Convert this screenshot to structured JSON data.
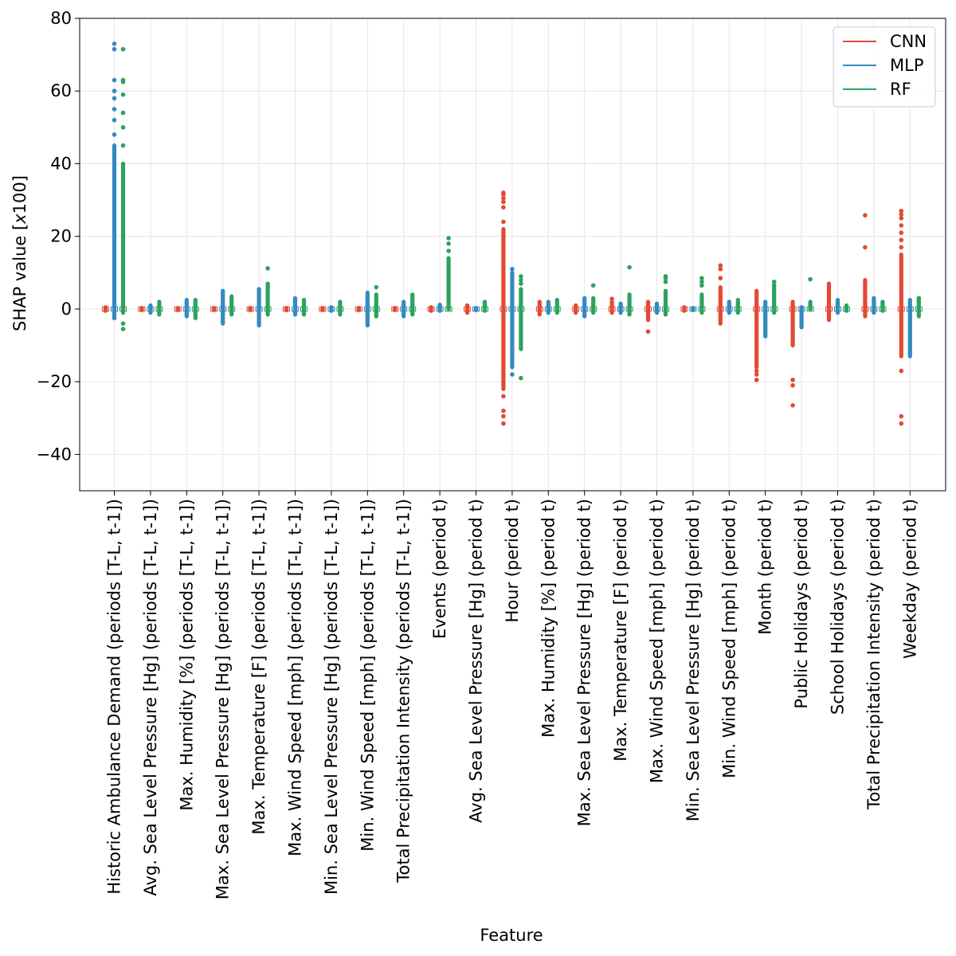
{
  "chart_data": {
    "type": "scatter",
    "title": "",
    "xlabel": "Feature",
    "ylabel": "SHAP value [x100]",
    "ylabel_parts": {
      "main": "SHAP value [",
      "italic": "x",
      "tail": "100]"
    },
    "ylim": [
      -50,
      80
    ],
    "yticks": [
      -40,
      -20,
      0,
      20,
      40,
      60,
      80
    ],
    "ytick_labels": [
      "−40",
      "−20",
      "0",
      "20",
      "40",
      "60",
      "80"
    ],
    "grid": true,
    "legend_position": "top-right",
    "categories": [
      "Historic Ambulance Demand (periods [T-L, t-1])",
      "Avg. Sea Level Pressure [Hg] (periods [T-L, t-1])",
      "Max. Humidity [%] (periods [T-L, t-1])",
      "Max. Sea Level Pressure [Hg] (periods [T-L, t-1])",
      "Max. Temperature [F] (periods [T-L, t-1])",
      "Max. Wind Speed [mph] (periods [T-L, t-1])",
      "Min. Sea Level Pressure [Hg] (periods [T-L, t-1])",
      "Min. Wind Speed [mph] (periods [T-L, t-1])",
      "Total Precipitation Intensity (periods [T-L, t-1])",
      "Events (period t)",
      "Avg. Sea Level Pressure [Hg] (period t)",
      "Hour (period t)",
      "Max. Humidity [%] (period t)",
      "Max. Sea Level Pressure [Hg] (period t)",
      "Max. Temperature [F] (period t)",
      "Max. Wind Speed [mph] (period t)",
      "Min. Sea Level Pressure [Hg] (period t)",
      "Min. Wind Speed [mph] (period t)",
      "Month (period t)",
      "Public Holidays (period t)",
      "School Holidays (period t)",
      "Total Precipitation Intensity (period t)",
      "Weekday (period t)"
    ],
    "series": [
      {
        "name": "CNN",
        "color": "#e24a33",
        "ranges": [
          [
            -0.5,
            0.5
          ],
          [
            -0.3,
            0.3
          ],
          [
            -0.3,
            0.3
          ],
          [
            -0.3,
            0.3
          ],
          [
            -0.3,
            0.3
          ],
          [
            -0.3,
            0.3
          ],
          [
            -0.3,
            0.3
          ],
          [
            -0.3,
            0.3
          ],
          [
            -0.3,
            0.3
          ],
          [
            -0.5,
            0.5
          ],
          [
            -1,
            1
          ],
          [
            -22,
            22
          ],
          [
            -1.5,
            2
          ],
          [
            -1,
            1
          ],
          [
            -1,
            2
          ],
          [
            -3,
            2
          ],
          [
            -0.5,
            0.5
          ],
          [
            -4,
            6
          ],
          [
            -16,
            5
          ],
          [
            -10,
            2
          ],
          [
            -3,
            7
          ],
          [
            -2,
            8
          ],
          [
            -13,
            15
          ]
        ],
        "outliers": [
          [],
          [],
          [],
          [],
          [],
          [],
          [],
          [],
          [],
          [],
          [],
          [
            -31.5,
            -29.5,
            -28,
            -24,
            24,
            28,
            29.5,
            30.5,
            31.5,
            32
          ],
          [],
          [],
          [
            2.8
          ],
          [
            -6.2
          ],
          [],
          [
            8.5,
            11,
            12
          ],
          [
            -19.5,
            -18,
            -17
          ],
          [
            -26.5,
            -21,
            -19.5
          ],
          [],
          [
            17,
            25.8
          ],
          [
            -31.5,
            -29.5,
            -17,
            17,
            19,
            21,
            23,
            25,
            26,
            27
          ]
        ]
      },
      {
        "name": "MLP",
        "color": "#348abd",
        "ranges": [
          [
            -2,
            45
          ],
          [
            -1,
            1
          ],
          [
            -2,
            2.5
          ],
          [
            -4,
            5
          ],
          [
            -4.5,
            5.5
          ],
          [
            -1.5,
            3
          ],
          [
            -0.5,
            0.5
          ],
          [
            -4.5,
            4.5
          ],
          [
            -2,
            2
          ],
          [
            -0.5,
            1.2
          ],
          [
            -0.3,
            0.3
          ],
          [
            -16,
            10
          ],
          [
            -1,
            2
          ],
          [
            -2,
            3
          ],
          [
            -1,
            1.5
          ],
          [
            -1,
            1.5
          ],
          [
            -0.3,
            0.3
          ],
          [
            -1,
            2
          ],
          [
            -7.5,
            2
          ],
          [
            -5,
            0.5
          ],
          [
            -1,
            2.5
          ],
          [
            -1,
            3
          ],
          [
            -13,
            2.5
          ]
        ],
        "outliers": [
          [
            -2.5,
            48,
            52,
            55,
            58,
            60,
            63,
            71.5,
            73
          ],
          [],
          [],
          [],
          [],
          [],
          [],
          [],
          [],
          [],
          [],
          [
            -18,
            11
          ],
          [],
          [],
          [],
          [],
          [],
          [],
          [],
          [],
          [],
          [],
          []
        ]
      },
      {
        "name": "RF",
        "color": "#2ca25f",
        "ranges": [
          [
            -1,
            40
          ],
          [
            -1.5,
            2
          ],
          [
            -2.5,
            2.5
          ],
          [
            -1.5,
            3.5
          ],
          [
            -1.5,
            7
          ],
          [
            -1.5,
            2.5
          ],
          [
            -1.5,
            2
          ],
          [
            -2,
            4
          ],
          [
            -1.5,
            4
          ],
          [
            0,
            14
          ],
          [
            -0.5,
            2
          ],
          [
            -11,
            5.5
          ],
          [
            -1,
            2.5
          ],
          [
            -1,
            3
          ],
          [
            -1.5,
            4
          ],
          [
            -1.5,
            5
          ],
          [
            -1,
            4
          ],
          [
            -1,
            2.5
          ],
          [
            -1,
            6
          ],
          [
            0,
            2
          ],
          [
            -0.5,
            1
          ],
          [
            -0.5,
            2
          ],
          [
            -2,
            2.5
          ]
        ],
        "outliers": [
          [
            -5.5,
            -4,
            45,
            50,
            54,
            59,
            62.5,
            63,
            71.5
          ],
          [],
          [],
          [],
          [
            11.2
          ],
          [],
          [],
          [
            6
          ],
          [],
          [
            16,
            18,
            19.5
          ],
          [],
          [
            -19,
            7,
            8,
            9
          ],
          [],
          [
            6.5
          ],
          [
            11.5
          ],
          [
            7.5,
            8.5,
            9
          ],
          [
            6.5,
            7.5,
            8.5
          ],
          [],
          [
            6.5,
            7.5
          ],
          [
            8.2
          ],
          [],
          [],
          [
            3
          ]
        ]
      }
    ]
  }
}
